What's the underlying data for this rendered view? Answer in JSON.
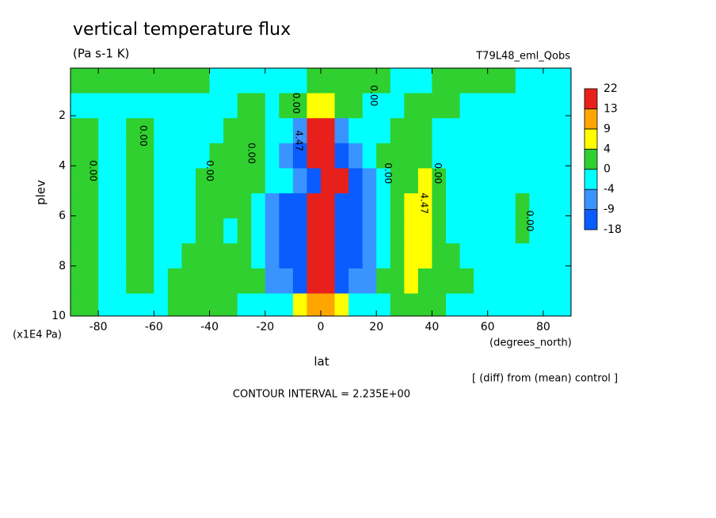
{
  "chart_data": {
    "type": "contour",
    "title": "vertical temperature flux",
    "subtitle": "(Pa s-1 K)",
    "dataset": "T79L48_eml_Qobs",
    "x_label": "lat",
    "x_units": "(degrees_north)",
    "y_label": "plev",
    "y_units": "(x1E4 Pa)",
    "note": "[ (diff) from (mean) control ]",
    "contour_interval": "CONTOUR INTERVAL = 2.235E+00",
    "xlim": [
      -90,
      90
    ],
    "xticks": [
      -80,
      -60,
      -40,
      -20,
      0,
      20,
      40,
      60,
      80
    ],
    "ylim": [
      10,
      0.1
    ],
    "yticks": [
      2,
      4,
      6,
      8,
      10
    ],
    "levels": [
      -18,
      -9,
      -4,
      0,
      4,
      9,
      13,
      22
    ],
    "colors": [
      "#0a5cff",
      "#3a94ff",
      "#00ffff",
      "#2fd02f",
      "#ffff00",
      "#ffa500",
      "#e8201c"
    ],
    "x": [
      -87.5,
      -82.5,
      -77.5,
      -72.5,
      -67.5,
      -62.5,
      -57.5,
      -52.5,
      -47.5,
      -42.5,
      -37.5,
      -32.5,
      -27.5,
      -22.5,
      -17.5,
      -12.5,
      -7.5,
      -2.5,
      2.5,
      7.5,
      12.5,
      17.5,
      22.5,
      27.5,
      32.5,
      37.5,
      42.5,
      47.5,
      52.5,
      57.5,
      62.5,
      67.5,
      72.5,
      77.5,
      82.5,
      87.5
    ],
    "y": [
      0.6,
      1.6,
      2.6,
      3.6,
      4.6,
      5.6,
      6.6,
      7.6,
      8.6,
      9.6
    ],
    "z": [
      [
        2,
        2,
        2,
        2,
        2,
        2,
        2,
        2,
        2,
        2,
        -2,
        -2,
        -2,
        -2,
        -2,
        -2,
        -2,
        2,
        2,
        2,
        2,
        2,
        2,
        -2,
        -2,
        -2,
        2,
        2,
        2,
        2,
        2,
        2,
        -2,
        -2,
        -2,
        -2
      ],
      [
        -2,
        -2,
        -2,
        -2,
        -2,
        -2,
        -2,
        -2,
        -2,
        -2,
        -2,
        -2,
        2,
        2,
        -2,
        2,
        2,
        6,
        6,
        2,
        2,
        -2,
        -2,
        -2,
        2,
        2,
        2,
        2,
        -2,
        -2,
        -2,
        -2,
        -2,
        -2,
        -2,
        -2
      ],
      [
        2,
        2,
        -2,
        -2,
        2,
        2,
        -2,
        -2,
        -2,
        -2,
        -2,
        2,
        2,
        2,
        -2,
        -2,
        -6,
        17,
        17,
        -6,
        -2,
        -2,
        -2,
        2,
        2,
        2,
        -2,
        -2,
        -2,
        -2,
        -2,
        -2,
        -2,
        -2,
        -2,
        -2
      ],
      [
        2,
        2,
        -2,
        -2,
        2,
        2,
        -2,
        -2,
        -2,
        -2,
        2,
        2,
        2,
        2,
        -2,
        -6,
        -12,
        17,
        17,
        -12,
        -6,
        -2,
        2,
        2,
        2,
        2,
        -2,
        -2,
        -2,
        -2,
        -2,
        -2,
        -2,
        -2,
        -2,
        -2
      ],
      [
        2,
        2,
        -2,
        -2,
        2,
        2,
        -2,
        -2,
        -2,
        2,
        2,
        2,
        2,
        2,
        -2,
        -2,
        -6,
        -12,
        17,
        17,
        -12,
        -6,
        -2,
        2,
        2,
        6,
        2,
        -2,
        -2,
        -2,
        -2,
        -2,
        -2,
        -2,
        -2,
        -2
      ],
      [
        2,
        2,
        -2,
        -2,
        2,
        2,
        -2,
        -2,
        -2,
        2,
        2,
        2,
        2,
        -2,
        -6,
        -12,
        -12,
        17,
        17,
        -12,
        -12,
        -6,
        -2,
        2,
        6,
        6,
        2,
        -2,
        -2,
        -2,
        -2,
        -2,
        2,
        -2,
        -2,
        -2
      ],
      [
        2,
        2,
        -2,
        -2,
        2,
        2,
        -2,
        -2,
        -2,
        2,
        2,
        -2,
        2,
        -2,
        -6,
        -12,
        -12,
        17,
        17,
        -12,
        -12,
        -6,
        -2,
        2,
        6,
        6,
        2,
        -2,
        -2,
        -2,
        -2,
        -2,
        2,
        -2,
        -2,
        -2
      ],
      [
        2,
        2,
        -2,
        -2,
        2,
        2,
        -2,
        -2,
        2,
        2,
        2,
        2,
        2,
        -2,
        -6,
        -12,
        -12,
        17,
        17,
        -12,
        -12,
        -6,
        -2,
        2,
        6,
        6,
        2,
        2,
        -2,
        -2,
        -2,
        -2,
        -2,
        -2,
        -2,
        -2
      ],
      [
        2,
        2,
        -2,
        -2,
        2,
        2,
        -2,
        2,
        2,
        2,
        2,
        2,
        2,
        2,
        -6,
        -6,
        -12,
        17,
        17,
        -12,
        -6,
        -6,
        2,
        2,
        6,
        2,
        2,
        2,
        2,
        -2,
        -2,
        -2,
        -2,
        -2,
        -2,
        -2
      ],
      [
        2,
        2,
        -2,
        -2,
        -2,
        -2,
        -2,
        2,
        2,
        2,
        2,
        2,
        -2,
        -2,
        -2,
        -2,
        6,
        11,
        11,
        6,
        -2,
        -2,
        -2,
        2,
        2,
        2,
        2,
        -2,
        -2,
        -2,
        -2,
        -2,
        -2,
        -2,
        -2,
        -2
      ]
    ],
    "annotations": [
      {
        "text": "0.00",
        "x": -82,
        "y": 4.2
      },
      {
        "text": "0.00",
        "x": -64,
        "y": 2.8
      },
      {
        "text": "0.00",
        "x": -40,
        "y": 4.2
      },
      {
        "text": "0.00",
        "x": -25,
        "y": 3.5
      },
      {
        "text": "0.00",
        "x": -9,
        "y": 1.5
      },
      {
        "text": "4.47",
        "x": -8,
        "y": 3.0
      },
      {
        "text": "0.00",
        "x": 19,
        "y": 1.2
      },
      {
        "text": "0.00",
        "x": 24,
        "y": 4.3
      },
      {
        "text": "0.00",
        "x": 42,
        "y": 4.3
      },
      {
        "text": "4.47",
        "x": 37,
        "y": 5.5
      },
      {
        "text": "0.00",
        "x": 75,
        "y": 6.2
      }
    ]
  }
}
